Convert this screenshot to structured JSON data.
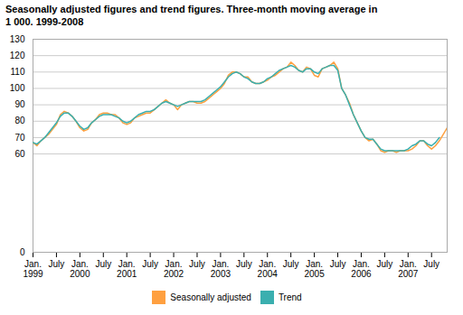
{
  "chart_data": {
    "type": "line",
    "title": "Seasonally adjusted figures and trend figures. Three-month moving average in\n1 000. 1999-2008",
    "categories": [
      "Jan.\n1999",
      null,
      null,
      null,
      null,
      null,
      "July",
      null,
      null,
      null,
      null,
      null,
      "Jan.\n2000",
      null,
      null,
      null,
      null,
      null,
      "July",
      null,
      null,
      null,
      null,
      null,
      "Jan.\n2001",
      null,
      null,
      null,
      null,
      null,
      "July",
      null,
      null,
      null,
      null,
      null,
      "Jan.\n2002",
      null,
      null,
      null,
      null,
      null,
      "July",
      null,
      null,
      null,
      null,
      null,
      "Jan.\n2003",
      null,
      null,
      null,
      null,
      null,
      "July",
      null,
      null,
      null,
      null,
      null,
      "Jan.\n2004",
      null,
      null,
      null,
      null,
      null,
      "July",
      null,
      null,
      null,
      null,
      null,
      "Jan.\n2005",
      null,
      null,
      null,
      null,
      null,
      "July",
      null,
      null,
      null,
      null,
      null,
      "Jan.\n2006",
      null,
      null,
      null,
      null,
      null,
      "July",
      null,
      null,
      null,
      null,
      null,
      "Jan.\n2007",
      null,
      null,
      null,
      null,
      null,
      "July",
      null,
      null,
      null,
      null
    ],
    "series": [
      {
        "name": "Seasonally adjusted",
        "color": "#FFA040",
        "values": [
          67,
          65,
          68,
          70,
          72,
          75,
          78,
          84,
          86,
          85,
          83,
          80,
          76,
          74,
          75,
          79,
          81,
          84,
          85,
          85,
          84,
          84,
          82,
          79,
          78,
          79,
          82,
          83,
          84,
          85,
          85,
          87,
          89,
          91,
          93,
          91,
          90,
          87,
          90,
          91,
          92,
          92,
          91,
          91,
          92,
          94,
          96,
          98,
          100,
          103,
          108,
          110,
          110,
          109,
          107,
          107,
          104,
          103,
          103,
          104,
          105,
          107,
          108,
          110,
          112,
          113,
          116,
          114,
          111,
          110,
          113,
          112,
          108,
          107,
          112,
          113,
          114,
          116,
          112,
          100,
          96,
          91,
          84,
          79,
          74,
          70,
          68,
          69,
          66,
          62,
          61,
          62,
          62,
          61,
          62,
          62,
          62,
          63,
          65,
          68,
          68,
          65,
          63,
          65,
          68,
          72,
          76
        ]
      },
      {
        "name": "Trend",
        "color": "#3AAFAF",
        "values": [
          67,
          66,
          68,
          70,
          73,
          76,
          79,
          83,
          85,
          85,
          83,
          80,
          77,
          75,
          76,
          79,
          81,
          83,
          84,
          84,
          84,
          83,
          82,
          80,
          79,
          80,
          82,
          84,
          85,
          86,
          86,
          87,
          89,
          91,
          92,
          91,
          90,
          89,
          90,
          91,
          92,
          92,
          92,
          92,
          93,
          95,
          97,
          99,
          101,
          104,
          107,
          109,
          110,
          109,
          107,
          106,
          104,
          103,
          103,
          104,
          106,
          107,
          109,
          111,
          112,
          113,
          114,
          113,
          111,
          110,
          112,
          112,
          110,
          109,
          112,
          113,
          114,
          114,
          111,
          100,
          96,
          90,
          84,
          79,
          74,
          70,
          69,
          69,
          66,
          63,
          62,
          62,
          62,
          62,
          62,
          62,
          63,
          65,
          66,
          68,
          68,
          66,
          65,
          67,
          70,
          null,
          null
        ]
      }
    ],
    "ylim": [
      0,
      130
    ],
    "yticks": [
      0,
      60,
      70,
      80,
      90,
      100,
      110,
      120,
      130
    ],
    "grid": true,
    "legend": "bottom"
  }
}
